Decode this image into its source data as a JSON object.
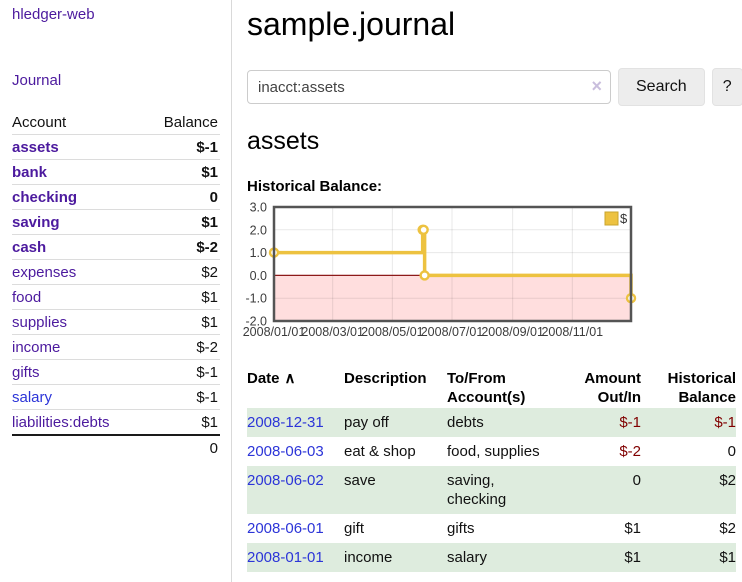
{
  "sidebar": {
    "brand": "hledger-web",
    "journal_link": "Journal",
    "account_header": "Account",
    "balance_header": "Balance",
    "accounts": [
      {
        "name": "assets",
        "balance": "$-1"
      },
      {
        "name": "bank",
        "balance": "$1"
      },
      {
        "name": "checking",
        "balance": "0"
      },
      {
        "name": "saving",
        "balance": "$1"
      },
      {
        "name": "cash",
        "balance": "$-2"
      },
      {
        "name": "expenses",
        "balance": "$2"
      },
      {
        "name": "food",
        "balance": "$1"
      },
      {
        "name": "supplies",
        "balance": "$1"
      },
      {
        "name": "income",
        "balance": "$-2"
      },
      {
        "name": "gifts",
        "balance": "$-1"
      },
      {
        "name": "salary",
        "balance": "$-1"
      },
      {
        "name": "liabilities:debts",
        "balance": "$1"
      }
    ],
    "total": "0"
  },
  "main": {
    "title": "sample.journal",
    "search": {
      "value": "inacct:assets",
      "clear_icon": "×",
      "search_button": "Search",
      "help_button": "?"
    },
    "account_heading": "assets",
    "chart_label": "Historical Balance:"
  },
  "chart_data": {
    "type": "line",
    "title": "Historical Balance:",
    "legend": {
      "position": "top-right",
      "label": "$"
    },
    "series": [
      {
        "name": "$",
        "color": "#EDC240",
        "style": "step",
        "points": [
          [
            "2008-01-01",
            1
          ],
          [
            "2008-06-01",
            2
          ],
          [
            "2008-06-02",
            2
          ],
          [
            "2008-06-03",
            0
          ],
          [
            "2008-12-31",
            -1
          ]
        ]
      }
    ],
    "xlim": [
      "2008-01-01",
      "2008-12-31"
    ],
    "ylim": [
      -2,
      3
    ],
    "yticks": [
      {
        "v": 3,
        "label": "3.0"
      },
      {
        "v": 2,
        "label": "2.0"
      },
      {
        "v": 1,
        "label": "1.0"
      },
      {
        "v": 0,
        "label": "0.0"
      },
      {
        "v": -1,
        "label": "-1.0"
      },
      {
        "v": -2,
        "label": "-2.0"
      }
    ],
    "xticks": [
      {
        "date": "2008-01-01",
        "label": "2008/01/01"
      },
      {
        "date": "2008-03-01",
        "label": "2008/03/01"
      },
      {
        "date": "2008-05-01",
        "label": "2008/05/01"
      },
      {
        "date": "2008-07-01",
        "label": "2008/07/01"
      },
      {
        "date": "2008-09-01",
        "label": "2008/09/01"
      },
      {
        "date": "2008-11-01",
        "label": "2008/11/01"
      }
    ],
    "colors": {
      "negative_region": "#ffdede",
      "zero_line": "#8d1a1a",
      "axis_text": "#3c3c3c",
      "border": "#545454",
      "grid": "rgba(0,0,0,0.09)",
      "legend_border": "#c9a42e"
    }
  },
  "register": {
    "headers": {
      "date": "Date",
      "sort_caret": "∧",
      "description": "Description",
      "accounts": "To/From Account(s)",
      "amount": "Amount Out/In",
      "balance": "Historical Balance"
    },
    "rows": [
      {
        "date": "2008-12-31",
        "description": "pay off",
        "accounts": "debts",
        "amount": "$-1",
        "balance": "$-1"
      },
      {
        "date": "2008-06-03",
        "description": "eat & shop",
        "accounts": "food, supplies",
        "amount": "$-2",
        "balance": "0"
      },
      {
        "date": "2008-06-02",
        "description": "save",
        "accounts": "saving, checking",
        "amount": "0",
        "balance": "$2"
      },
      {
        "date": "2008-06-01",
        "description": "gift",
        "accounts": "gifts",
        "amount": "$1",
        "balance": "$2"
      },
      {
        "date": "2008-01-01",
        "description": "income",
        "accounts": "salary",
        "amount": "$1",
        "balance": "$1"
      }
    ]
  }
}
